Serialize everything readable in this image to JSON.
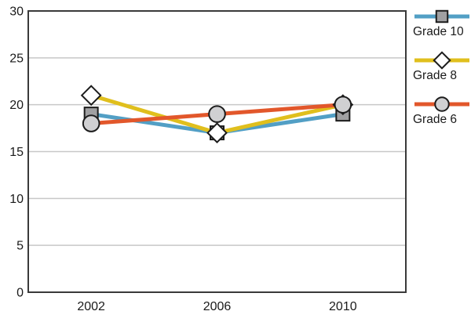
{
  "chart_data": {
    "type": "line",
    "title": "",
    "xlabel": "",
    "ylabel": "",
    "categories": [
      "2002",
      "2006",
      "2010"
    ],
    "series": [
      {
        "name": "Grade 10",
        "values": [
          19,
          17,
          19
        ],
        "line_color": "#529FC5",
        "marker": "square",
        "marker_fill": "#A0A0A2"
      },
      {
        "name": "Grade 8",
        "values": [
          21,
          17,
          20
        ],
        "line_color": "#E0BF1D",
        "marker": "diamond",
        "marker_fill": "#FFFFFF"
      },
      {
        "name": "Grade 6",
        "values": [
          18,
          19,
          20
        ],
        "line_color": "#E2572B",
        "marker": "circle",
        "marker_fill": "#D0D0D2"
      }
    ],
    "ylim": [
      0,
      30
    ],
    "yticks": [
      0,
      5,
      10,
      15,
      20,
      25,
      30
    ],
    "grid": true,
    "legend_position": "right"
  },
  "colors": {
    "background": "#FFFFFF",
    "plot_border": "#3A3A3A",
    "gridline": "#C8C8C8",
    "marker_stroke": "#1C1C1C",
    "text": "#1A1A1A"
  }
}
